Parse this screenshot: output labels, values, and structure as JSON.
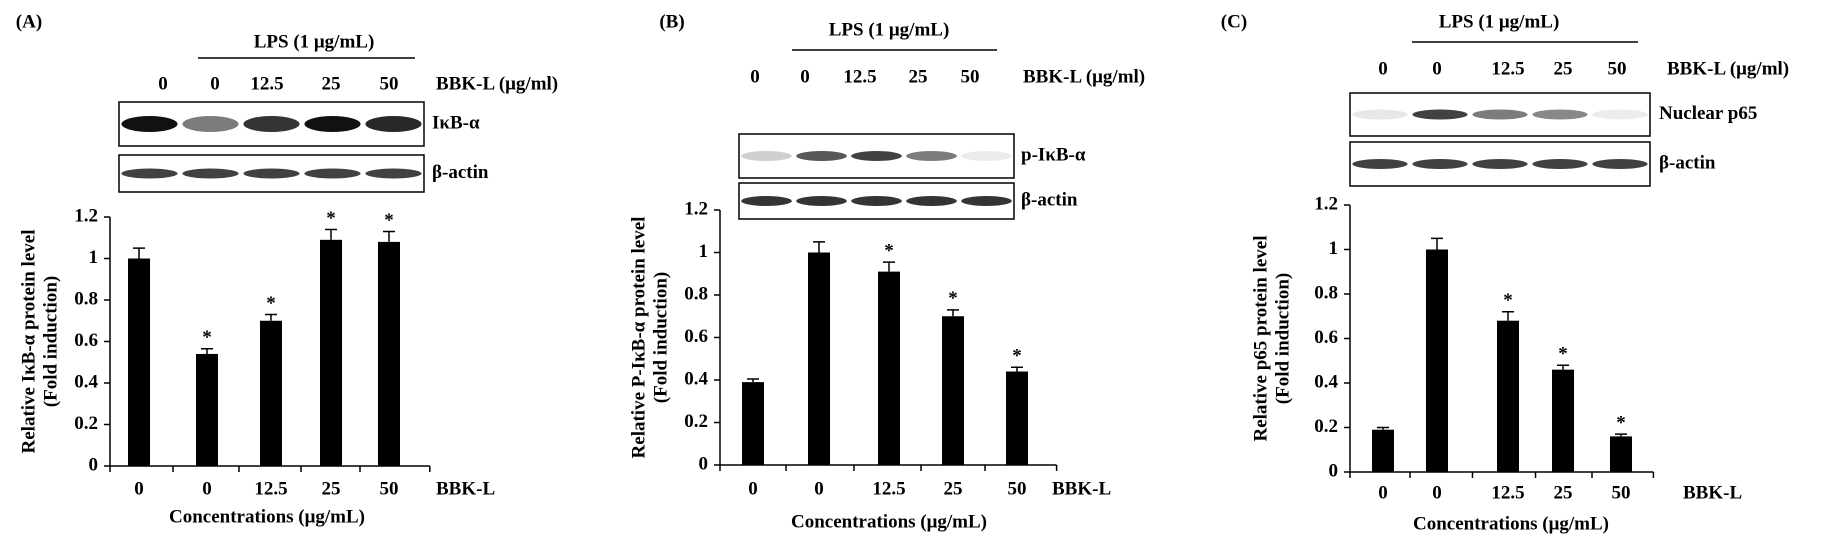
{
  "chart_data": [
    {
      "type": "bar",
      "panel_label": "(A)",
      "blot": {
        "treatment": "LPS (1 μg/mL)",
        "dose_label": "BBK-L (μg/ml)",
        "lanes": [
          "0",
          "0",
          "12.5",
          "25",
          "50"
        ],
        "rows": [
          "IκB-α",
          "β-actin"
        ]
      },
      "ylabel": [
        "Relative IκB-α protein level",
        "(Fold induction)"
      ],
      "xlabel": "Concentrations (μg/mL)",
      "x_axis_note": "BBK-L",
      "categories": [
        "0",
        "0",
        "12.5",
        "25",
        "50"
      ],
      "values": [
        1.0,
        0.54,
        0.7,
        1.09,
        1.08
      ],
      "errors": [
        0.05,
        0.025,
        0.03,
        0.05,
        0.05
      ],
      "significance": [
        null,
        "*",
        "*",
        "*",
        "*"
      ],
      "color": "#000000",
      "ylim": [
        0,
        1.2
      ],
      "yticks": [
        0,
        0.2,
        0.4,
        0.6,
        0.8,
        1,
        1.2
      ]
    },
    {
      "type": "bar",
      "panel_label": "(B)",
      "blot": {
        "treatment": "LPS (1 μg/mL)",
        "dose_label": "BBK-L (μg/ml)",
        "lanes": [
          "0",
          "0",
          "12.5",
          "25",
          "50"
        ],
        "rows": [
          "p-IκB-α",
          "β-actin"
        ]
      },
      "ylabel": [
        "Relative P-IκB-α protein level",
        "(Fold induction)"
      ],
      "xlabel": "Concentrations (μg/mL)",
      "x_axis_note": "BBK-L",
      "categories": [
        "0",
        "0",
        "12.5",
        "25",
        "50"
      ],
      "values": [
        0.39,
        1.0,
        0.91,
        0.7,
        0.44
      ],
      "errors": [
        0.015,
        0.05,
        0.045,
        0.03,
        0.02
      ],
      "significance": [
        null,
        null,
        "*",
        "*",
        "*"
      ],
      "color": "#000000",
      "ylim": [
        0,
        1.2
      ],
      "yticks": [
        0,
        0.2,
        0.4,
        0.6,
        0.8,
        1,
        1.2
      ]
    },
    {
      "type": "bar",
      "panel_label": "(C)",
      "blot": {
        "treatment": "LPS (1 μg/mL)",
        "dose_label": "BBK-L (μg/ml)",
        "lanes": [
          "0",
          "0",
          "12.5",
          "25",
          "50"
        ],
        "rows": [
          "Nuclear p65",
          "β-actin"
        ]
      },
      "ylabel": [
        "Relative p65 protein level",
        "(Fold induction)"
      ],
      "xlabel": "Concentrations (μg/mL)",
      "x_axis_note": "BBK-L",
      "categories": [
        "0",
        "0",
        "12.5",
        "25",
        "50"
      ],
      "values": [
        0.19,
        1.0,
        0.68,
        0.46,
        0.16
      ],
      "errors": [
        0.01,
        0.05,
        0.04,
        0.02,
        0.01
      ],
      "significance": [
        null,
        null,
        "*",
        "*",
        "*"
      ],
      "color": "#000000",
      "ylim": [
        0,
        1.2
      ],
      "yticks": [
        0,
        0.2,
        0.4,
        0.6,
        0.8,
        1,
        1.2
      ]
    }
  ]
}
